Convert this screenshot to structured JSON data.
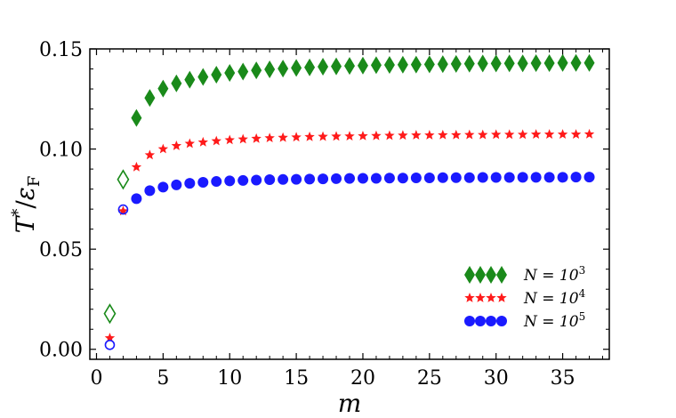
{
  "chart_data": {
    "type": "scatter",
    "xlabel": "m",
    "ylabel": "T*/εF",
    "xlim": [
      -0.5,
      38.5
    ],
    "ylim": [
      -0.005,
      0.15
    ],
    "xticks": [
      0,
      5,
      10,
      15,
      20,
      25,
      30,
      35
    ],
    "yticks": [
      0.0,
      0.05,
      0.1,
      0.15
    ],
    "xtick_labels": [
      "0",
      "5",
      "10",
      "15",
      "20",
      "25",
      "30",
      "35"
    ],
    "ytick_labels": [
      "0.00",
      "0.05",
      "0.10",
      "0.15"
    ],
    "grid": false,
    "legend_position": "lower-right",
    "series": [
      {
        "name": "N = 10^3",
        "label_main": "N = 10",
        "label_exp": "3",
        "marker": "diamond",
        "color": "#1a8a1a",
        "open_points": [
          [
            1,
            0.0178
          ],
          [
            2,
            0.0848
          ]
        ],
        "x": [
          3,
          4,
          5,
          6,
          7,
          8,
          9,
          10,
          11,
          12,
          13,
          14,
          15,
          16,
          17,
          18,
          19,
          20,
          21,
          22,
          23,
          24,
          25,
          26,
          27,
          28,
          29,
          30,
          31,
          32,
          33,
          34,
          35,
          36,
          37
        ],
        "values": [
          0.1155,
          0.1255,
          0.1302,
          0.1328,
          0.1346,
          0.136,
          0.1371,
          0.138,
          0.1387,
          0.1393,
          0.1398,
          0.1402,
          0.1405,
          0.1408,
          0.1411,
          0.1413,
          0.1415,
          0.1417,
          0.1419,
          0.142,
          0.1421,
          0.1422,
          0.1423,
          0.1424,
          0.1425,
          0.1426,
          0.1427,
          0.1427,
          0.1428,
          0.1428,
          0.1429,
          0.1429,
          0.143,
          0.143,
          0.143
        ]
      },
      {
        "name": "N = 10^4",
        "label_main": "N = 10",
        "label_exp": "4",
        "marker": "star",
        "color": "#ff1a1a",
        "open_points": [
          [
            1,
            0.0056
          ]
        ],
        "x": [
          2,
          3,
          4,
          5,
          6,
          7,
          8,
          9,
          10,
          11,
          12,
          13,
          14,
          15,
          16,
          17,
          18,
          19,
          20,
          21,
          22,
          23,
          24,
          25,
          26,
          27,
          28,
          29,
          30,
          31,
          32,
          33,
          34,
          35,
          36,
          37
        ],
        "values": [
          0.069,
          0.091,
          0.097,
          0.1,
          0.1016,
          0.1027,
          0.1034,
          0.104,
          0.1045,
          0.1049,
          0.1052,
          0.1055,
          0.1057,
          0.1059,
          0.1061,
          0.1062,
          0.1063,
          0.1064,
          0.1065,
          0.1066,
          0.1067,
          0.1068,
          0.1069,
          0.1069,
          0.107,
          0.107,
          0.1071,
          0.1071,
          0.1072,
          0.1072,
          0.1072,
          0.1073,
          0.1073,
          0.1073,
          0.1073,
          0.1074
        ]
      },
      {
        "name": "N = 10^5",
        "label_main": "N = 10",
        "label_exp": "5",
        "marker": "circle",
        "color": "#1a1aff",
        "open_points": [
          [
            1,
            0.0022
          ],
          [
            2,
            0.0698
          ]
        ],
        "x": [
          3,
          4,
          5,
          6,
          7,
          8,
          9,
          10,
          11,
          12,
          13,
          14,
          15,
          16,
          17,
          18,
          19,
          20,
          21,
          22,
          23,
          24,
          25,
          26,
          27,
          28,
          29,
          30,
          31,
          32,
          33,
          34,
          35,
          36,
          37
        ],
        "values": [
          0.0752,
          0.0792,
          0.081,
          0.0821,
          0.0829,
          0.0834,
          0.0838,
          0.0841,
          0.0843,
          0.0845,
          0.0847,
          0.0848,
          0.0849,
          0.085,
          0.0851,
          0.0852,
          0.0853,
          0.0854,
          0.0854,
          0.0855,
          0.0855,
          0.0856,
          0.0856,
          0.0857,
          0.0857,
          0.0857,
          0.0858,
          0.0858,
          0.0858,
          0.0859,
          0.0859,
          0.0859,
          0.0859,
          0.086,
          0.086
        ]
      }
    ]
  }
}
